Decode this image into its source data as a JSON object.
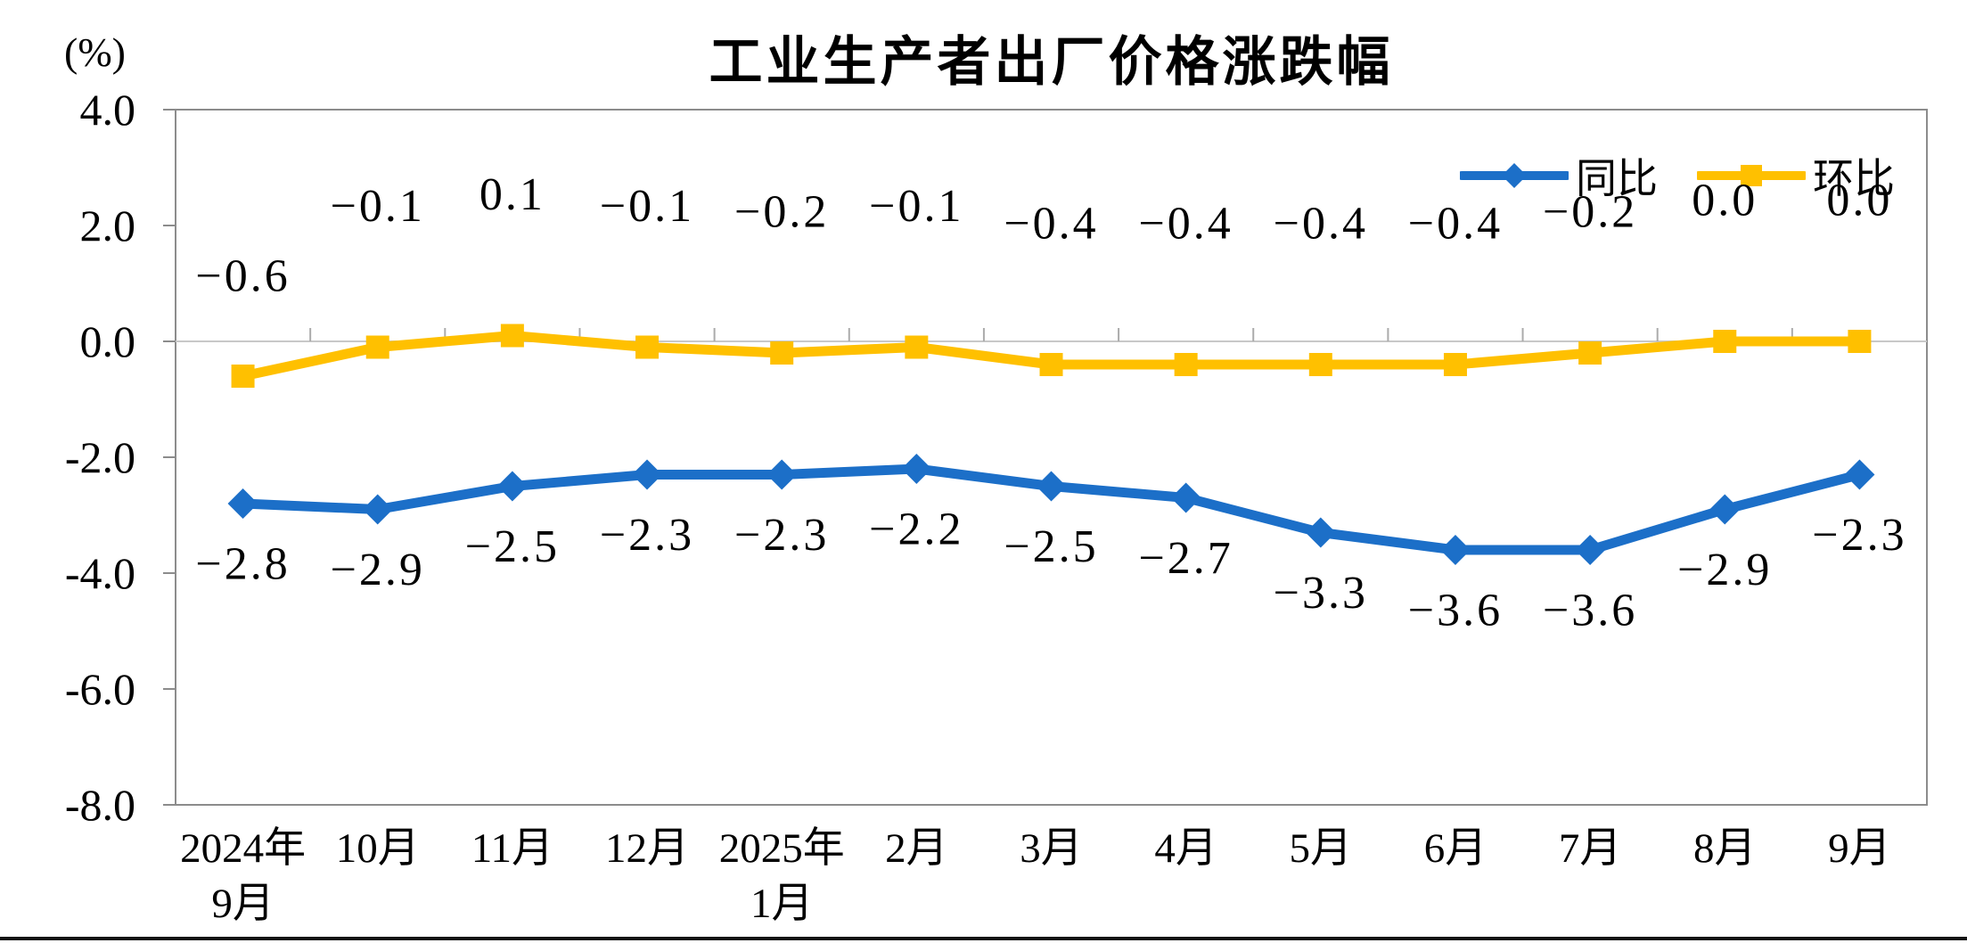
{
  "page": {
    "background": "#ffffff",
    "bottom_rule_color": "#141414"
  },
  "chart_data": {
    "type": "line",
    "title": "工业生产者出厂价格涨跌幅",
    "unit_label": "(%)",
    "categories": [
      [
        "2024年",
        "9月"
      ],
      [
        "10月"
      ],
      [
        "11月"
      ],
      [
        "12月"
      ],
      [
        "2025年",
        "1月"
      ],
      [
        "2月"
      ],
      [
        "3月"
      ],
      [
        "4月"
      ],
      [
        "5月"
      ],
      [
        "6月"
      ],
      [
        "7月"
      ],
      [
        "8月"
      ],
      [
        "9月"
      ]
    ],
    "series": [
      {
        "name": "同比",
        "color": "#1C6FC8",
        "marker": "diamond",
        "label_position": "below",
        "values": [
          -2.8,
          -2.9,
          -2.5,
          -2.3,
          -2.3,
          -2.2,
          -2.5,
          -2.7,
          -3.3,
          -3.6,
          -3.6,
          -2.9,
          -2.3
        ]
      },
      {
        "name": "环比",
        "color": "#FFC000",
        "marker": "square",
        "label_position": "above",
        "values": [
          -0.6,
          -0.1,
          0.1,
          -0.1,
          -0.2,
          -0.1,
          -0.4,
          -0.4,
          -0.4,
          -0.4,
          -0.2,
          0.0,
          0.0
        ]
      }
    ],
    "ylim": [
      -8,
      4
    ],
    "ytick_step": 2,
    "yticks": [
      "4.0",
      "2.0",
      "0.0",
      "-2.0",
      "-4.0",
      "-6.0",
      "-8.0"
    ],
    "xlabel": "",
    "ylabel": "(%)",
    "grid": "zero-line-only",
    "legend_position": "top-right",
    "axis_colors": {
      "plot_border": "#8C8C8C",
      "zero_line": "#C8C8C8",
      "category_tick": "#ABABAB",
      "label_text": "#000000"
    }
  }
}
